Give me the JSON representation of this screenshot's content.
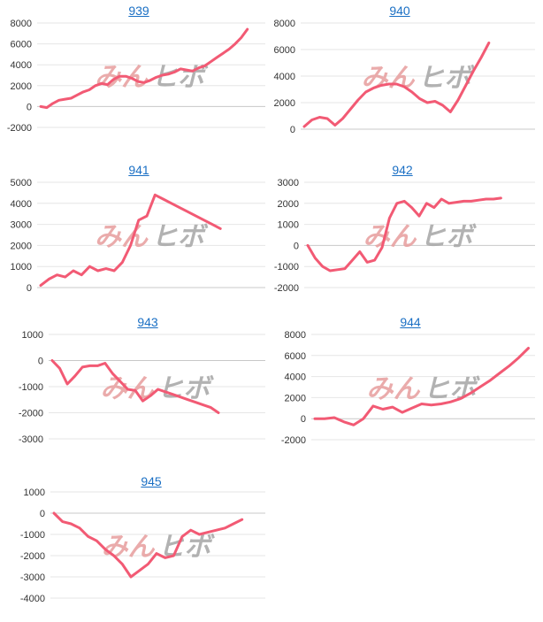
{
  "watermark": {
    "part1": "みん",
    "part2": "ヒボ"
  },
  "colors": {
    "line": "#f25a74",
    "grid": "#e6e6e6",
    "zero": "#c8c8c8",
    "title_link": "#1a6fc4"
  },
  "chart_data": [
    {
      "type": "line",
      "title": "939",
      "ylim": [
        -2000,
        8000
      ],
      "yticks": [
        -2000,
        0,
        2000,
        4000,
        6000,
        8000
      ],
      "values": [
        0,
        -100,
        300,
        600,
        700,
        800,
        1100,
        1400,
        1600,
        2000,
        2200,
        2100,
        2600,
        2900,
        2900,
        2700,
        2400,
        2300,
        2500,
        2800,
        3000,
        3100,
        3300,
        3600,
        3500,
        3400,
        3700,
        3900,
        4300,
        4700,
        5100,
        5500,
        6000,
        6600,
        7400
      ]
    },
    {
      "type": "line",
      "title": "940",
      "ylim": [
        0,
        8000
      ],
      "yticks": [
        0,
        2000,
        4000,
        6000,
        8000
      ],
      "values": [
        200,
        700,
        900,
        800,
        300,
        800,
        1500,
        2200,
        2800,
        3100,
        3300,
        3400,
        3400,
        3200,
        2800,
        2300,
        2000,
        2100,
        1800,
        1300,
        2200,
        3300,
        4400,
        5400,
        6500
      ]
    },
    {
      "type": "line",
      "title": "941",
      "ylim": [
        0,
        5000
      ],
      "yticks": [
        0,
        1000,
        2000,
        3000,
        4000,
        5000
      ],
      "values": [
        100,
        400,
        600,
        500,
        800,
        600,
        1000,
        800,
        900,
        800,
        1200,
        2000,
        3200,
        3400,
        4400,
        4200,
        4000,
        3800,
        3600,
        3400,
        3200,
        3000,
        2800
      ]
    },
    {
      "type": "line",
      "title": "942",
      "ylim": [
        -2000,
        3000
      ],
      "yticks": [
        -2000,
        -1000,
        0,
        1000,
        2000,
        3000
      ],
      "values": [
        0,
        -600,
        -1000,
        -1200,
        -1150,
        -1100,
        -700,
        -300,
        -800,
        -700,
        -100,
        1300,
        2000,
        2100,
        1800,
        1400,
        2000,
        1800,
        2200,
        2000,
        2050,
        2100,
        2100,
        2150,
        2200,
        2200,
        2250
      ]
    },
    {
      "type": "line",
      "title": "943",
      "ylim": [
        -3000,
        1000
      ],
      "yticks": [
        -3000,
        -2000,
        -1000,
        0,
        1000
      ],
      "values": [
        0,
        -300,
        -900,
        -600,
        -250,
        -200,
        -200,
        -100,
        -500,
        -800,
        -1100,
        -1150,
        -1550,
        -1350,
        -1100,
        -1200,
        -1300,
        -1400,
        -1500,
        -1600,
        -1700,
        -1800,
        -2000
      ]
    },
    {
      "type": "line",
      "title": "944",
      "ylim": [
        -2000,
        8000
      ],
      "yticks": [
        -2000,
        0,
        2000,
        4000,
        6000,
        8000
      ],
      "values": [
        0,
        0,
        100,
        -300,
        -600,
        0,
        1200,
        900,
        1100,
        600,
        1000,
        1400,
        1300,
        1400,
        1600,
        1900,
        2400,
        3000,
        3600,
        4300,
        5000,
        5800,
        6700
      ]
    },
    {
      "type": "line",
      "title": "945",
      "ylim": [
        -4000,
        1000
      ],
      "yticks": [
        -4000,
        -3000,
        -2000,
        -1000,
        0,
        1000
      ],
      "values": [
        0,
        -400,
        -500,
        -700,
        -1100,
        -1300,
        -1700,
        -2000,
        -2400,
        -3000,
        -2700,
        -2400,
        -1900,
        -2100,
        -2000,
        -1100,
        -800,
        -1000,
        -900,
        -800,
        -700,
        -500,
        -300
      ]
    }
  ]
}
